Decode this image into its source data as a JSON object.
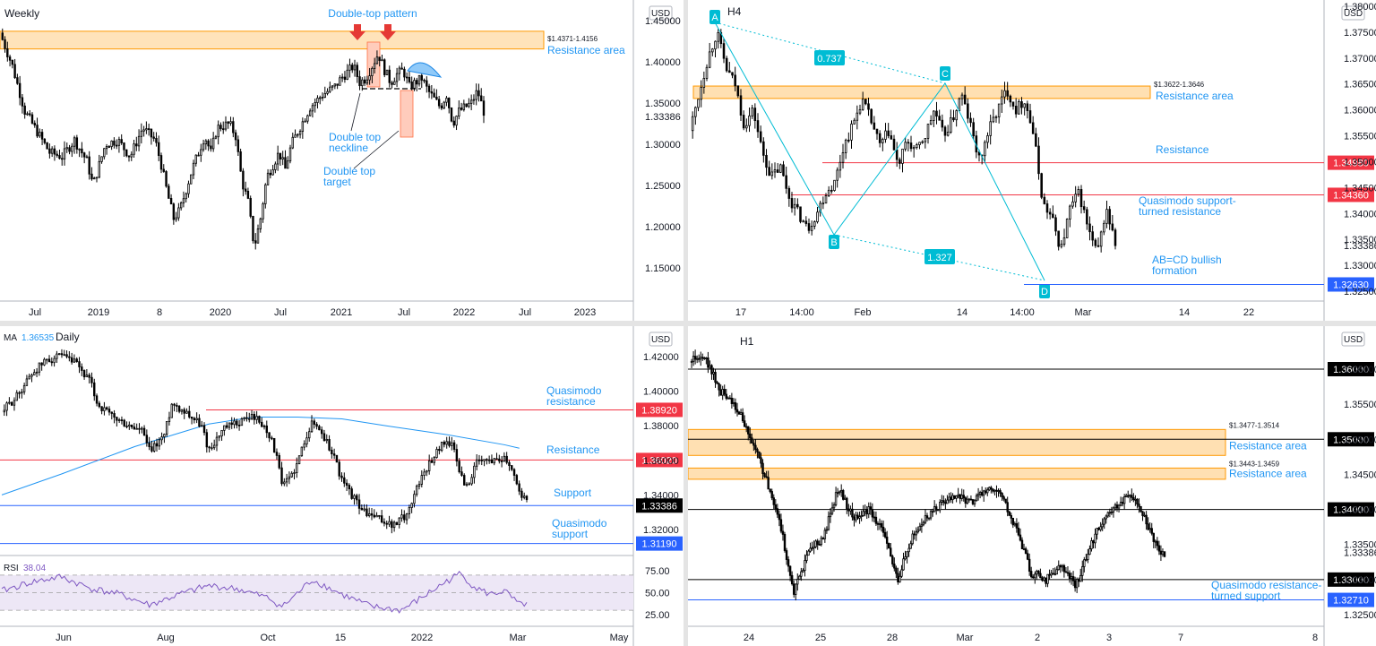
{
  "colors": {
    "blue_text": "#2196f3",
    "red_line": "#f23645",
    "zone_fill": "#ffe0b2",
    "zone_stroke": "#ff9800",
    "pattern": "#00bcd4",
    "ma": "#2196f3",
    "rsi": "#7e57c2",
    "bull": "#000000",
    "bear": "#000000"
  },
  "chart_data": [
    {
      "id": "weekly",
      "type": "candlestick",
      "title": "Weekly",
      "currency": "USD",
      "y_ticks": [
        "1.45000",
        "1.40000",
        "1.35000",
        "1.30000",
        "1.25000",
        "1.20000",
        "1.15000"
      ],
      "x_ticks": [
        "Jul",
        "2019",
        "8",
        "2020",
        "Jul",
        "2021",
        "Jul",
        "2022",
        "Jul",
        "2023"
      ],
      "last_price": "1.33386",
      "path": [
        [
          0,
          1.435
        ],
        [
          2,
          1.395
        ],
        [
          4,
          1.34
        ],
        [
          6,
          1.315
        ],
        [
          8,
          1.29
        ],
        [
          10,
          1.285
        ],
        [
          12,
          1.305
        ],
        [
          14,
          1.28
        ],
        [
          15,
          1.25
        ],
        [
          17,
          1.3
        ],
        [
          19,
          1.305
        ],
        [
          21,
          1.285
        ],
        [
          23,
          1.32
        ],
        [
          25,
          1.305
        ],
        [
          26,
          1.275
        ],
        [
          27,
          1.24
        ],
        [
          28,
          1.21
        ],
        [
          29,
          1.22
        ],
        [
          31,
          1.27
        ],
        [
          33,
          1.31
        ],
        [
          34,
          1.29
        ],
        [
          35,
          1.32
        ],
        [
          37,
          1.325
        ],
        [
          38,
          1.31
        ],
        [
          39,
          1.255
        ],
        [
          40,
          1.23
        ],
        [
          41,
          1.175
        ],
        [
          42,
          1.21
        ],
        [
          43,
          1.26
        ],
        [
          45,
          1.29
        ],
        [
          46,
          1.27
        ],
        [
          47,
          1.3
        ],
        [
          48,
          1.315
        ],
        [
          50,
          1.345
        ],
        [
          52,
          1.36
        ],
        [
          54,
          1.37
        ],
        [
          55,
          1.38
        ],
        [
          57,
          1.395
        ],
        [
          58,
          1.375
        ],
        [
          59,
          1.38
        ],
        [
          61,
          1.41
        ],
        [
          62,
          1.39
        ],
        [
          63,
          1.375
        ],
        [
          64,
          1.385
        ],
        [
          65,
          1.39
        ],
        [
          66,
          1.37
        ],
        [
          68,
          1.38
        ],
        [
          69,
          1.365
        ],
        [
          71,
          1.345
        ],
        [
          72,
          1.36
        ],
        [
          73,
          1.325
        ],
        [
          74,
          1.34
        ],
        [
          76,
          1.35
        ],
        [
          77,
          1.365
        ],
        [
          78,
          1.34
        ]
      ],
      "zones": [
        {
          "label": "$1.4371-1.4156",
          "name": "Resistance area",
          "y0": 1.4371,
          "y1": 1.4156
        }
      ],
      "annotations": [
        "Double-top pattern",
        "Double top neckline",
        "Double top target"
      ]
    },
    {
      "id": "h4",
      "type": "candlestick",
      "title": "H4",
      "currency": "USD",
      "y_ticks": [
        "1.38000",
        "1.37500",
        "1.37000",
        "1.36500",
        "1.36000",
        "1.35500",
        "1.35000",
        "1.34500",
        "1.34000",
        "1.33500",
        "1.33000",
        "1.32500"
      ],
      "x_ticks": [
        "17",
        "14:00",
        "Feb",
        "14",
        "14:00",
        "Mar",
        "14",
        "22"
      ],
      "last_price": "1.33386",
      "path": [
        [
          0,
          1.356
        ],
        [
          1,
          1.363
        ],
        [
          2,
          1.37
        ],
        [
          3,
          1.375
        ],
        [
          4,
          1.368
        ],
        [
          5,
          1.365
        ],
        [
          6,
          1.357
        ],
        [
          7,
          1.36
        ],
        [
          8,
          1.352
        ],
        [
          9,
          1.347
        ],
        [
          10,
          1.349
        ],
        [
          11,
          1.343
        ],
        [
          12,
          1.34
        ],
        [
          13,
          1.337
        ],
        [
          14,
          1.34
        ],
        [
          15,
          1.344
        ],
        [
          16,
          1.346
        ],
        [
          17,
          1.353
        ],
        [
          18,
          1.357
        ],
        [
          19,
          1.362
        ],
        [
          20,
          1.358
        ],
        [
          21,
          1.353
        ],
        [
          22,
          1.356
        ],
        [
          23,
          1.349
        ],
        [
          24,
          1.354
        ],
        [
          25,
          1.352
        ],
        [
          26,
          1.355
        ],
        [
          27,
          1.36
        ],
        [
          28,
          1.355
        ],
        [
          29,
          1.358
        ],
        [
          30,
          1.363
        ],
        [
          31,
          1.357
        ],
        [
          32,
          1.35
        ],
        [
          33,
          1.356
        ],
        [
          34,
          1.36
        ],
        [
          35,
          1.364
        ],
        [
          36,
          1.36
        ],
        [
          37,
          1.362
        ],
        [
          38,
          1.355
        ],
        [
          39,
          1.342
        ],
        [
          40,
          1.339
        ],
        [
          41,
          1.333
        ],
        [
          42,
          1.341
        ],
        [
          43,
          1.344
        ],
        [
          44,
          1.337
        ],
        [
          45,
          1.332
        ],
        [
          46,
          1.341
        ],
        [
          47,
          1.334
        ]
      ],
      "zones": [
        {
          "label": "$1.3622-1.3646",
          "name": "Resistance area",
          "y0": 1.3646,
          "y1": 1.3622
        }
      ],
      "levels": [
        {
          "name": "Resistance",
          "value": "1.34980",
          "color": "#f23645"
        },
        {
          "name": "Quasimodo support-turned resistance",
          "value": "1.34360",
          "color": "#f23645"
        },
        {
          "name": "AB=CD bullish formation",
          "value": "1.32630",
          "color": "#2962ff"
        }
      ],
      "pattern_labels": [
        "A",
        "B",
        "C",
        "D"
      ],
      "ratios": [
        "0.737",
        "1.327"
      ]
    },
    {
      "id": "daily",
      "type": "candlestick",
      "title": "Daily",
      "currency": "USD",
      "ma_label": "MA",
      "ma_value": "1.36535",
      "y_ticks": [
        "1.42000",
        "1.40000",
        "1.38000",
        "1.36000",
        "1.34000",
        "1.32000"
      ],
      "x_ticks": [
        "Jun",
        "Aug",
        "Oct",
        "15",
        "2022",
        "Mar",
        "May"
      ],
      "last_price": "1.33386",
      "path": [
        [
          0,
          1.388
        ],
        [
          2,
          1.397
        ],
        [
          4,
          1.41
        ],
        [
          6,
          1.418
        ],
        [
          8,
          1.42
        ],
        [
          10,
          1.416
        ],
        [
          12,
          1.405
        ],
        [
          13,
          1.392
        ],
        [
          15,
          1.385
        ],
        [
          17,
          1.38
        ],
        [
          19,
          1.377
        ],
        [
          20,
          1.365
        ],
        [
          22,
          1.375
        ],
        [
          23,
          1.393
        ],
        [
          25,
          1.388
        ],
        [
          27,
          1.38
        ],
        [
          28,
          1.366
        ],
        [
          30,
          1.378
        ],
        [
          32,
          1.382
        ],
        [
          34,
          1.386
        ],
        [
          36,
          1.377
        ],
        [
          37,
          1.365
        ],
        [
          38,
          1.344
        ],
        [
          40,
          1.358
        ],
        [
          41,
          1.373
        ],
        [
          42,
          1.382
        ],
        [
          43,
          1.378
        ],
        [
          44,
          1.37
        ],
        [
          45,
          1.362
        ],
        [
          46,
          1.348
        ],
        [
          47,
          1.342
        ],
        [
          49,
          1.33
        ],
        [
          51,
          1.326
        ],
        [
          53,
          1.322
        ],
        [
          55,
          1.33
        ],
        [
          56,
          1.344
        ],
        [
          58,
          1.36
        ],
        [
          60,
          1.372
        ],
        [
          61,
          1.368
        ],
        [
          62,
          1.352
        ],
        [
          63,
          1.344
        ],
        [
          64,
          1.358
        ],
        [
          66,
          1.36
        ],
        [
          68,
          1.362
        ],
        [
          69,
          1.356
        ],
        [
          70,
          1.342
        ],
        [
          71,
          1.336
        ]
      ],
      "ma": [
        [
          0,
          1.34
        ],
        [
          8,
          1.352
        ],
        [
          18,
          1.368
        ],
        [
          28,
          1.381
        ],
        [
          34,
          1.385
        ],
        [
          40,
          1.385
        ],
        [
          46,
          1.384
        ],
        [
          52,
          1.38
        ],
        [
          60,
          1.375
        ],
        [
          68,
          1.369
        ],
        [
          70,
          1.367
        ]
      ],
      "levels": [
        {
          "name": "Quasimodo resistance",
          "value": "1.38920",
          "color": "#f23645"
        },
        {
          "name": "Resistance",
          "value": "1.36020",
          "color": "#f23645"
        },
        {
          "name": "Support",
          "value": "1.33386",
          "color": "#2962ff"
        },
        {
          "name": "Quasimodo support",
          "value": "1.31190",
          "color": "#2962ff"
        }
      ],
      "rsi_label": "RSI",
      "rsi_value": "38.04",
      "rsi_ticks": [
        "75.00",
        "50.00",
        "25.00"
      ],
      "rsi_path": [
        [
          0,
          52
        ],
        [
          4,
          62
        ],
        [
          8,
          68
        ],
        [
          12,
          55
        ],
        [
          16,
          48
        ],
        [
          20,
          36
        ],
        [
          24,
          48
        ],
        [
          28,
          58
        ],
        [
          32,
          54
        ],
        [
          36,
          44
        ],
        [
          38,
          34
        ],
        [
          42,
          65
        ],
        [
          46,
          48
        ],
        [
          50,
          34
        ],
        [
          54,
          30
        ],
        [
          56,
          40
        ],
        [
          60,
          62
        ],
        [
          62,
          72
        ],
        [
          64,
          56
        ],
        [
          66,
          48
        ],
        [
          68,
          52
        ],
        [
          70,
          36
        ],
        [
          71,
          38
        ]
      ]
    },
    {
      "id": "h1",
      "type": "candlestick",
      "title": "H1",
      "currency": "USD",
      "y_ticks": [
        "1.36000",
        "1.35500",
        "1.35000",
        "1.34500",
        "1.34000",
        "1.33500",
        "1.33000",
        "1.32500"
      ],
      "x_ticks": [
        "24",
        "25",
        "28",
        "Mar",
        "2",
        "3",
        "7",
        "8"
      ],
      "last_price": "1.33386",
      "path": [
        [
          0,
          1.361
        ],
        [
          1,
          1.362
        ],
        [
          2,
          1.357
        ],
        [
          3,
          1.355
        ],
        [
          4,
          1.351
        ],
        [
          5,
          1.345
        ],
        [
          6,
          1.339
        ],
        [
          7,
          1.328
        ],
        [
          8,
          1.334
        ],
        [
          9,
          1.336
        ],
        [
          10,
          1.343
        ],
        [
          11,
          1.339
        ],
        [
          12,
          1.34
        ],
        [
          13,
          1.337
        ],
        [
          14,
          1.33
        ],
        [
          15,
          1.336
        ],
        [
          16,
          1.339
        ],
        [
          17,
          1.341
        ],
        [
          18,
          1.342
        ],
        [
          19,
          1.341
        ],
        [
          20,
          1.343
        ],
        [
          21,
          1.342
        ],
        [
          22,
          1.337
        ],
        [
          23,
          1.331
        ],
        [
          24,
          1.33
        ],
        [
          25,
          1.332
        ],
        [
          26,
          1.329
        ],
        [
          27,
          1.335
        ],
        [
          28,
          1.339
        ],
        [
          29,
          1.341
        ],
        [
          30,
          1.342
        ],
        [
          31,
          1.337
        ],
        [
          32,
          1.333
        ]
      ],
      "zones": [
        {
          "label": "$1.3477-1.3514",
          "name": "Resistance area",
          "y0": 1.3514,
          "y1": 1.3477
        },
        {
          "label": "$1.3443-1.3459",
          "name": "Resistance area",
          "y0": 1.3459,
          "y1": 1.3443
        }
      ],
      "levels": [
        {
          "name": "",
          "value": "1.36000",
          "color": "#000000"
        },
        {
          "name": "",
          "value": "1.35000",
          "color": "#000000"
        },
        {
          "name": "",
          "value": "1.34000",
          "color": "#000000"
        },
        {
          "name": "",
          "value": "1.33000",
          "color": "#000000"
        },
        {
          "name": "Quasimodo resistance-turned support",
          "value": "1.32710",
          "color": "#2962ff"
        }
      ]
    }
  ]
}
